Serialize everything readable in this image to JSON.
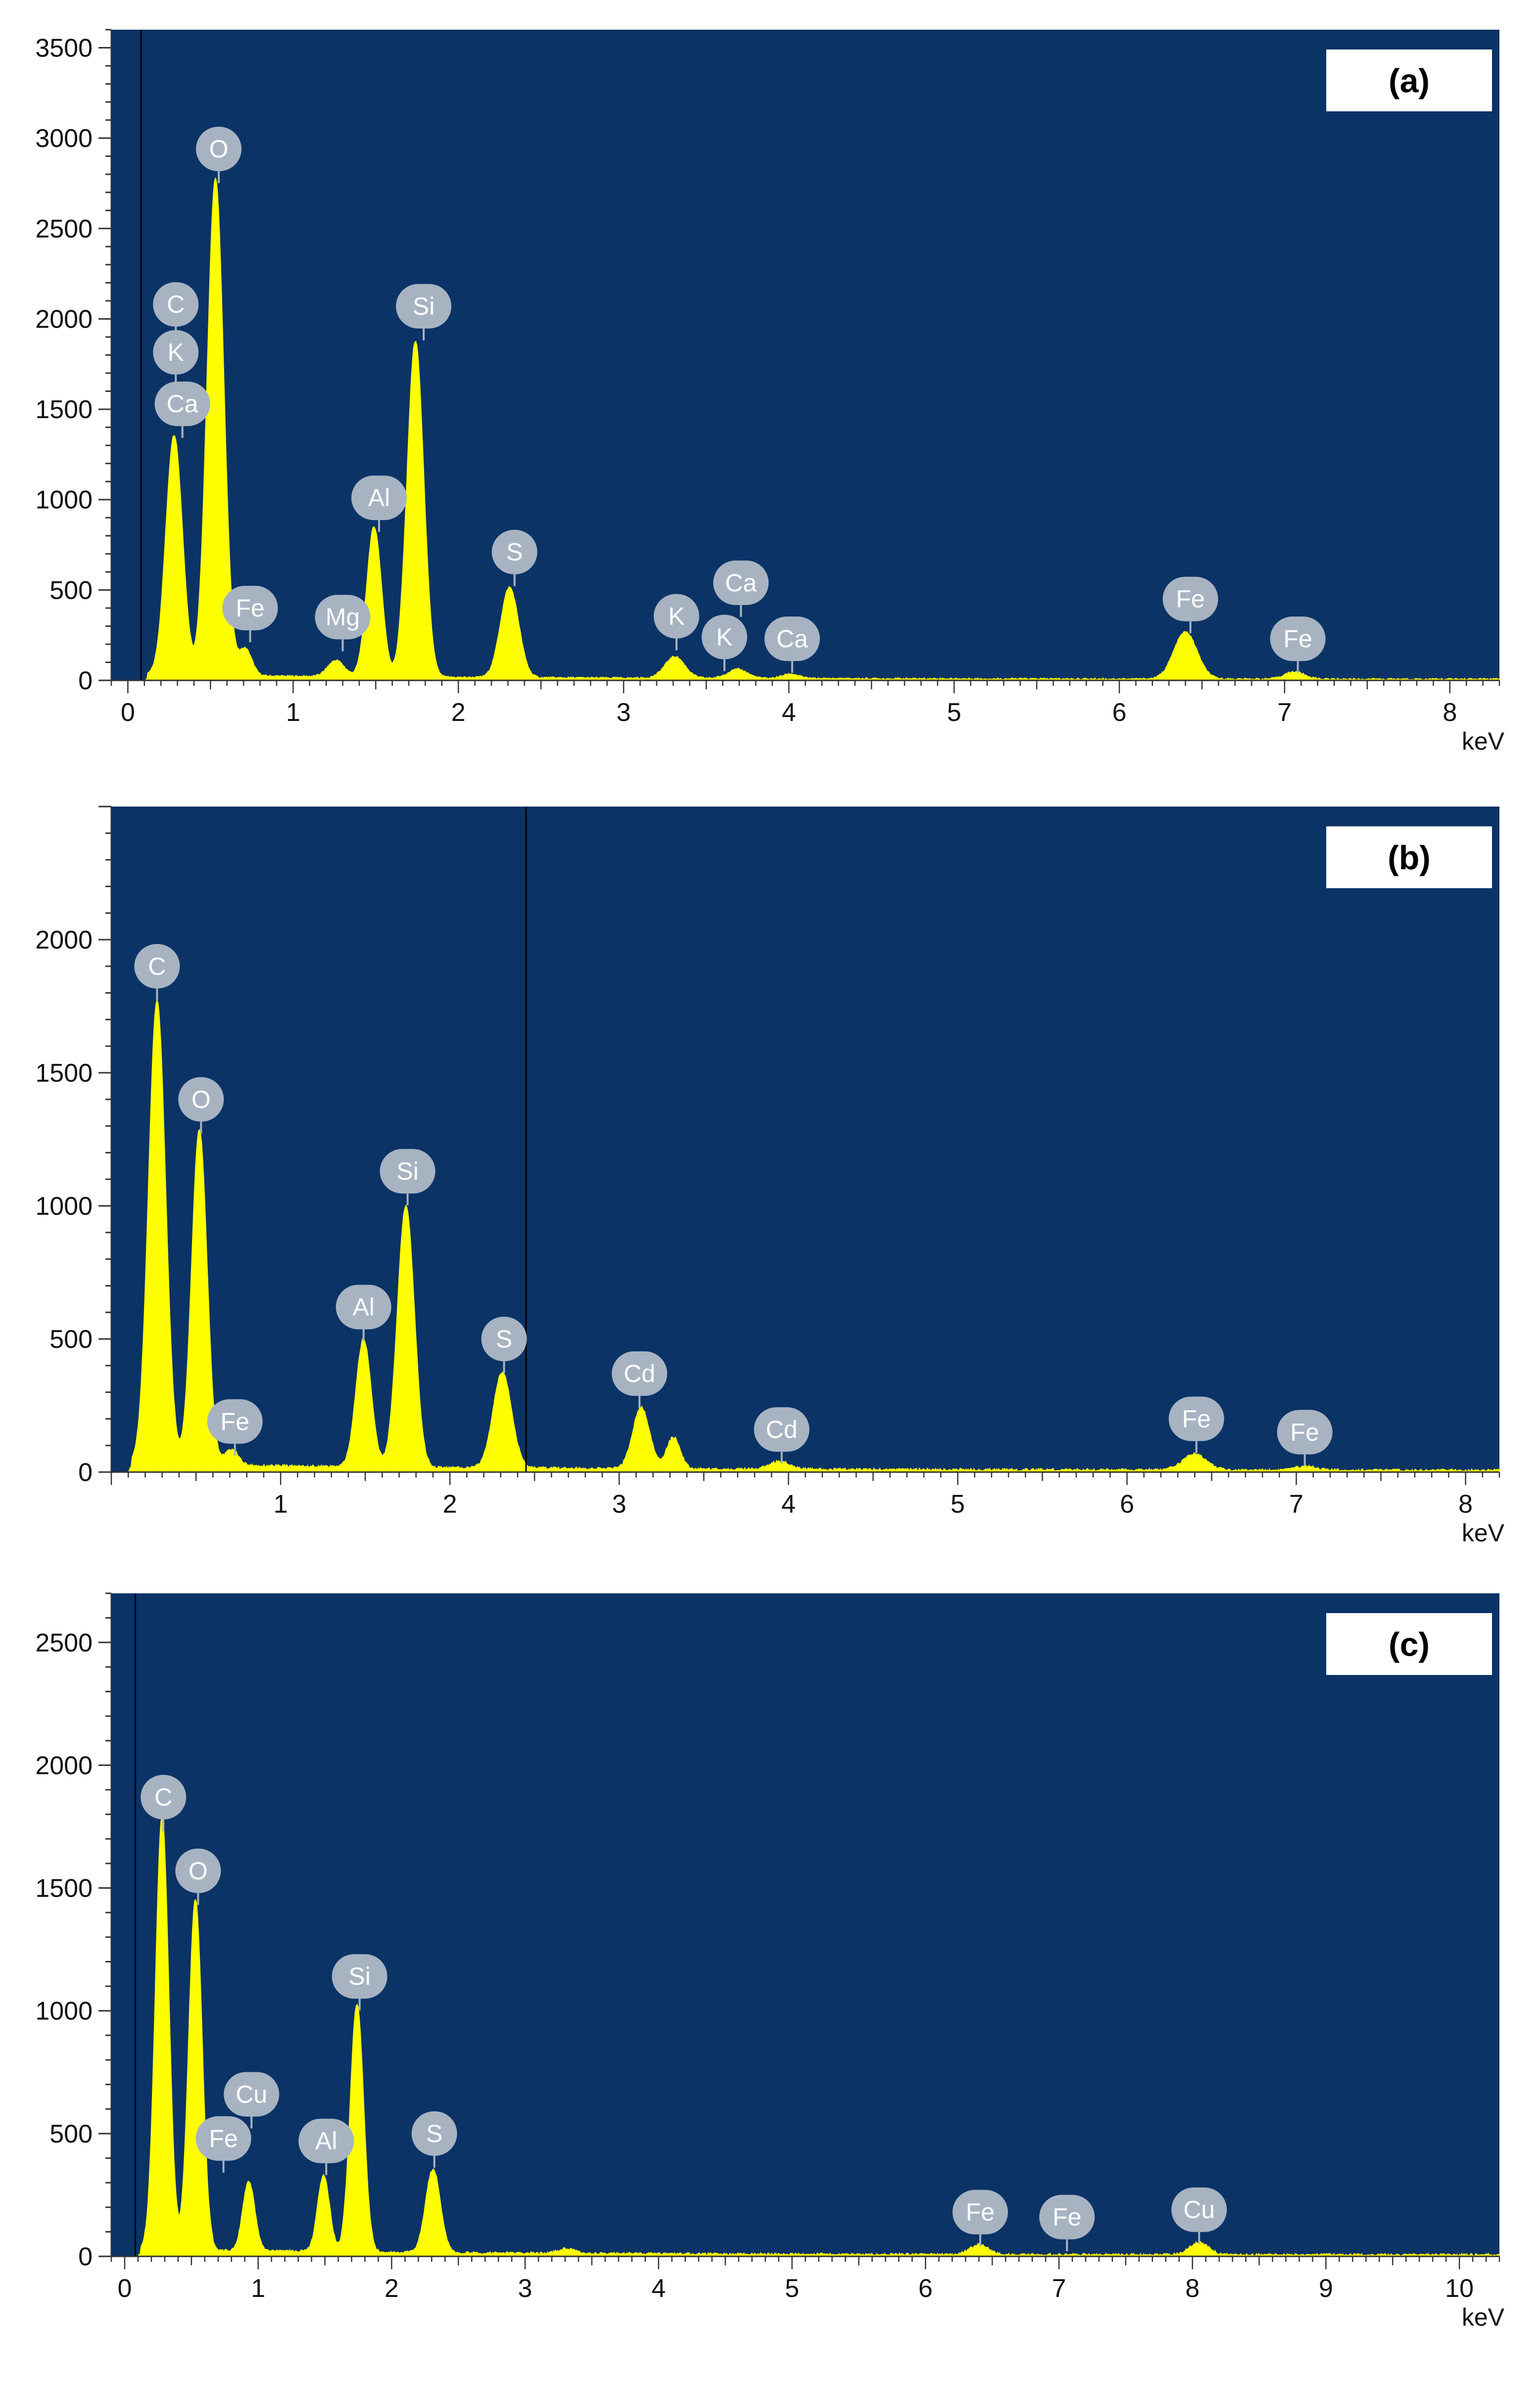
{
  "colors": {
    "plot_background": "#0b3366",
    "spectrum_fill": "#ffff00",
    "label_bubble": "#a7b3c1",
    "label_text": "#ffffff",
    "axis": "#333333"
  },
  "chart_data": [
    {
      "type": "area",
      "panel_label": "(a)",
      "x_unit": "keV",
      "xlim": [
        -0.1,
        8.3
      ],
      "ylim": [
        0,
        3600
      ],
      "x_ticks": [
        0,
        1,
        2,
        3,
        4,
        5,
        6,
        7,
        8
      ],
      "y_ticks": [
        0,
        500,
        1000,
        1500,
        2000,
        2500,
        3000,
        3500
      ],
      "marker_line_x": 0.08,
      "peaks": [
        {
          "x": 0.28,
          "y": 1330,
          "w": 0.05
        },
        {
          "x": 0.53,
          "y": 2750,
          "w": 0.05
        },
        {
          "x": 0.71,
          "y": 150,
          "w": 0.04
        },
        {
          "x": 1.26,
          "y": 90,
          "w": 0.05
        },
        {
          "x": 1.49,
          "y": 830,
          "w": 0.045
        },
        {
          "x": 1.74,
          "y": 1860,
          "w": 0.05
        },
        {
          "x": 2.31,
          "y": 500,
          "w": 0.055
        },
        {
          "x": 3.31,
          "y": 120,
          "w": 0.06
        },
        {
          "x": 3.69,
          "y": 50,
          "w": 0.06
        },
        {
          "x": 4.01,
          "y": 25,
          "w": 0.05
        },
        {
          "x": 6.4,
          "y": 260,
          "w": 0.07
        },
        {
          "x": 7.06,
          "y": 40,
          "w": 0.06
        }
      ],
      "peak_labels": [
        {
          "text": "O",
          "x": 0.55,
          "y": 2940
        },
        {
          "text": "C",
          "x": 0.29,
          "y": 2080
        },
        {
          "text": "K",
          "x": 0.29,
          "y": 1815
        },
        {
          "text": "Ca",
          "x": 0.33,
          "y": 1530
        },
        {
          "text": "Si",
          "x": 1.79,
          "y": 2070
        },
        {
          "text": "Al",
          "x": 1.52,
          "y": 1010
        },
        {
          "text": "S",
          "x": 2.34,
          "y": 710
        },
        {
          "text": "Fe",
          "x": 0.74,
          "y": 400
        },
        {
          "text": "Mg",
          "x": 1.3,
          "y": 350
        },
        {
          "text": "K",
          "x": 3.32,
          "y": 355
        },
        {
          "text": "K",
          "x": 3.61,
          "y": 240
        },
        {
          "text": "Ca",
          "x": 3.71,
          "y": 540
        },
        {
          "text": "Ca",
          "x": 4.02,
          "y": 230
        },
        {
          "text": "Fe",
          "x": 6.43,
          "y": 450
        },
        {
          "text": "Fe",
          "x": 7.08,
          "y": 230
        }
      ]
    },
    {
      "type": "area",
      "panel_label": "(b)",
      "x_unit": "keV",
      "xlim": [
        0.0,
        8.2
      ],
      "ylim": [
        0,
        2500
      ],
      "x_ticks": [
        1,
        2,
        3,
        4,
        5,
        6,
        7,
        8
      ],
      "y_ticks": [
        0,
        500,
        1000,
        1500,
        2000
      ],
      "marker_line_x": 2.45,
      "peaks": [
        {
          "x": 0.27,
          "y": 1740,
          "w": 0.05
        },
        {
          "x": 0.52,
          "y": 1260,
          "w": 0.045
        },
        {
          "x": 0.71,
          "y": 60,
          "w": 0.04
        },
        {
          "x": 1.49,
          "y": 480,
          "w": 0.045
        },
        {
          "x": 1.74,
          "y": 980,
          "w": 0.05
        },
        {
          "x": 2.31,
          "y": 360,
          "w": 0.055
        },
        {
          "x": 3.13,
          "y": 230,
          "w": 0.05
        },
        {
          "x": 3.32,
          "y": 120,
          "w": 0.04
        },
        {
          "x": 3.95,
          "y": 30,
          "w": 0.06
        },
        {
          "x": 6.4,
          "y": 60,
          "w": 0.07
        },
        {
          "x": 7.06,
          "y": 15,
          "w": 0.06
        }
      ],
      "peak_labels": [
        {
          "text": "C",
          "x": 0.27,
          "y": 1900
        },
        {
          "text": "O",
          "x": 0.53,
          "y": 1400
        },
        {
          "text": "Si",
          "x": 1.75,
          "y": 1130
        },
        {
          "text": "Al",
          "x": 1.49,
          "y": 620
        },
        {
          "text": "S",
          "x": 2.32,
          "y": 500
        },
        {
          "text": "Cd",
          "x": 3.12,
          "y": 370
        },
        {
          "text": "Fe",
          "x": 0.73,
          "y": 190
        },
        {
          "text": "Cd",
          "x": 3.96,
          "y": 160
        },
        {
          "text": "Fe",
          "x": 6.41,
          "y": 200
        },
        {
          "text": "Fe",
          "x": 7.05,
          "y": 150
        }
      ]
    },
    {
      "type": "area",
      "panel_label": "(c)",
      "x_unit": "keV",
      "xlim": [
        -0.1,
        10.3
      ],
      "ylim": [
        0,
        2700
      ],
      "x_ticks": [
        0,
        1,
        2,
        3,
        4,
        5,
        6,
        7,
        8,
        9,
        10
      ],
      "y_ticks": [
        0,
        500,
        1000,
        1500,
        2000,
        2500
      ],
      "marker_line_x": 0.08,
      "peaks": [
        {
          "x": 0.28,
          "y": 1760,
          "w": 0.05
        },
        {
          "x": 0.53,
          "y": 1430,
          "w": 0.05
        },
        {
          "x": 0.93,
          "y": 280,
          "w": 0.045
        },
        {
          "x": 1.49,
          "y": 310,
          "w": 0.045
        },
        {
          "x": 1.74,
          "y": 1010,
          "w": 0.05
        },
        {
          "x": 2.31,
          "y": 340,
          "w": 0.055
        },
        {
          "x": 3.31,
          "y": 20,
          "w": 0.06
        },
        {
          "x": 6.4,
          "y": 40,
          "w": 0.07
        },
        {
          "x": 8.05,
          "y": 50,
          "w": 0.07
        }
      ],
      "peak_labels": [
        {
          "text": "C",
          "x": 0.29,
          "y": 1870
        },
        {
          "text": "O",
          "x": 0.55,
          "y": 1570
        },
        {
          "text": "Si",
          "x": 1.76,
          "y": 1140
        },
        {
          "text": "Cu",
          "x": 0.95,
          "y": 660
        },
        {
          "text": "Fe",
          "x": 0.74,
          "y": 480
        },
        {
          "text": "Al",
          "x": 1.51,
          "y": 470
        },
        {
          "text": "S",
          "x": 2.32,
          "y": 500
        },
        {
          "text": "Fe",
          "x": 6.41,
          "y": 180
        },
        {
          "text": "Fe",
          "x": 7.06,
          "y": 160
        },
        {
          "text": "Cu",
          "x": 8.05,
          "y": 190
        }
      ]
    }
  ]
}
